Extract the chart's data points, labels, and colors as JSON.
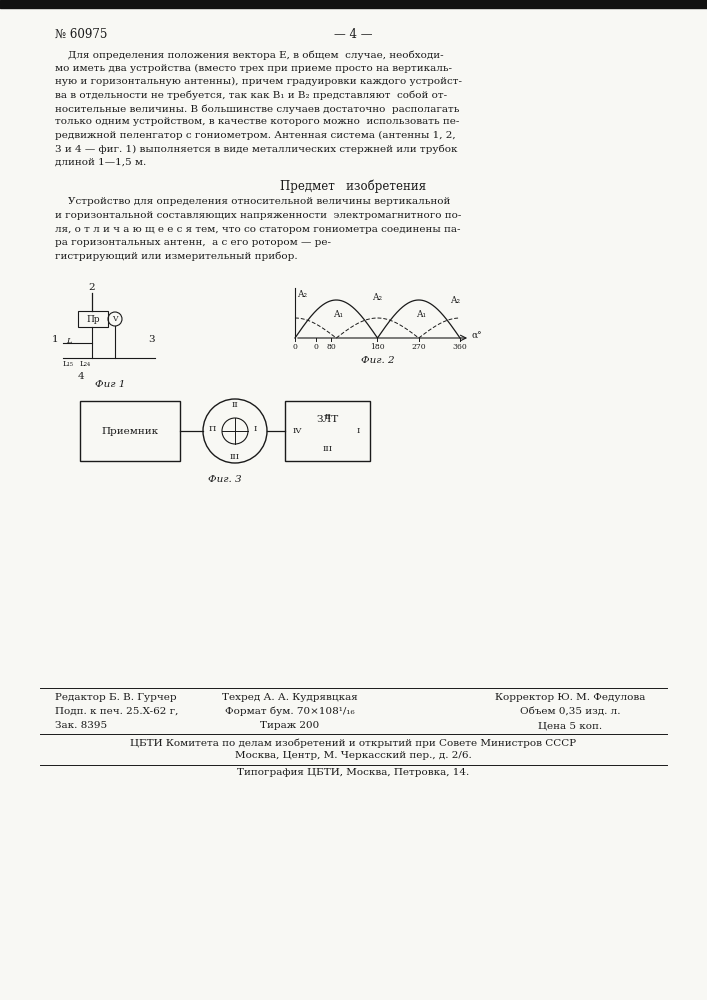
{
  "page_color": "#f8f8f4",
  "text_color": "#1a1a1a",
  "patent_number": "№ 60975",
  "page_number": "— 4 —",
  "section_title": "Предмет   изобретения",
  "fig1_label": "Фиг 1",
  "fig2_label": "Фиг. 2",
  "fig3_label": "Фиг. 3",
  "para1_lines": [
    "    Для определения положения вектора E, в общем  случае, необходи-",
    "мо иметь два устройства (вместо трех при приеме просто на вертикаль-",
    "ную и горизонтальную антенны), причем градуировки каждого устройст-",
    "ва в отдельности не требуется, так как B₁ и B₂ представляют  собой от-",
    "носительные величины. В большинстве случаев достаточно  располагать",
    "только одним устройством, в качестве которого можно  использовать пе-",
    "редвижной пеленгатор с гониометром. Антенная система (антенны 1, 2,",
    "3 и 4 — фиг. 1) выполняется в виде металлических стержней или трубок",
    "длиной 1—1,5 м."
  ],
  "para2_lines": [
    "    Устройство для определения относительной величины вертикальной",
    "и горизонтальной составляющих напряженности  электромагнитного по-",
    "ля, о т л и ч а ю щ е е с я тем, что со статором гониометра соединены па-",
    "ра горизонтальных антенн,  а с его ротором — ре-",
    "гистрирующий или измерительный прибор."
  ],
  "footer_line1_col1": "Редактор Б. В. Гурчер",
  "footer_line1_col2": "Техред А. А. Кудрявцкая",
  "footer_line1_col3": "Корректор Ю. М. Федулова",
  "footer_line2_col1": "Подп. к печ. 25.X-62 г,",
  "footer_line2_col2": "Формат бум. 70×108¹/₁₆",
  "footer_line2_col3": "Объем 0,35 изд. л.",
  "footer_line3_col1": "Зак. 8395",
  "footer_line3_col2": "Тираж 200",
  "footer_line3_col3": "Цена 5 коп.",
  "footer_line4": "ЦБТИ Комитета по делам изобретений и открытий при Совете Министров СССР",
  "footer_line5": "Москва, Центр, М. Черкасский пер., д. 2/6.",
  "footer_line6": "Типография ЦБТИ, Москва, Петровка, 14."
}
